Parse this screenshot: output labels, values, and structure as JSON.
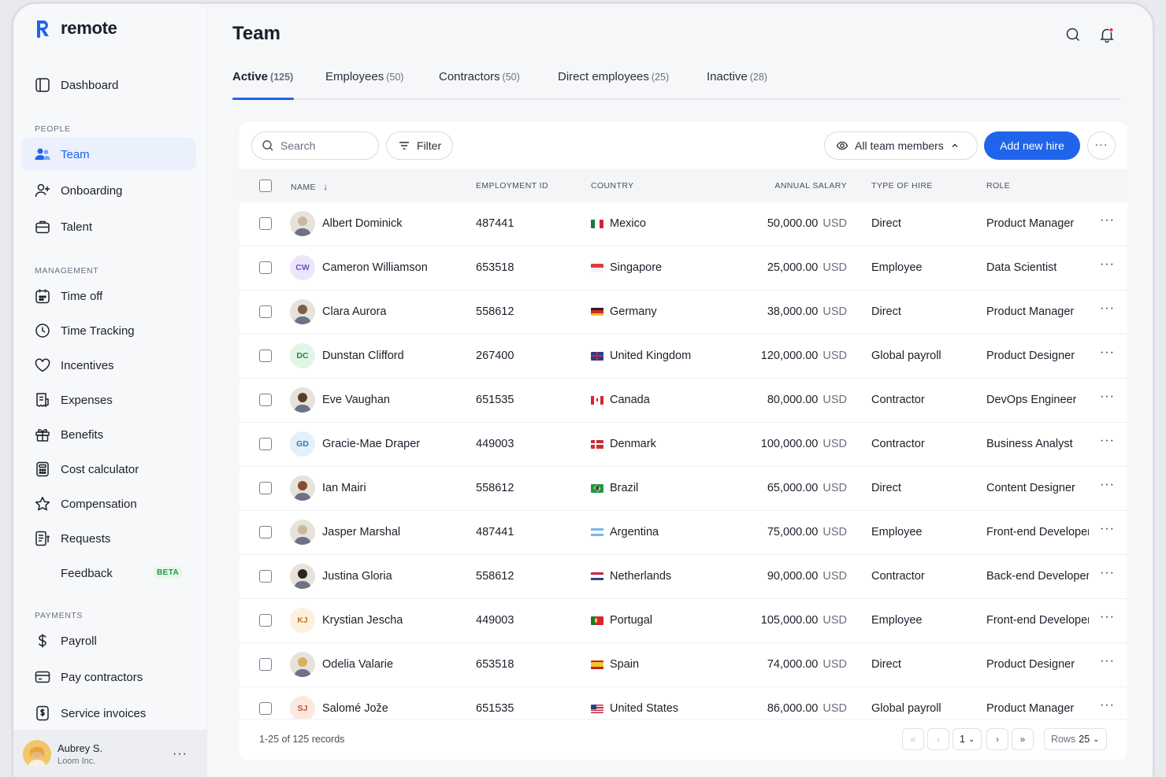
{
  "app": {
    "logo_text": "remote"
  },
  "sidebar": {
    "dashboard": "Dashboard",
    "sections": {
      "people": "PEOPLE",
      "management": "MANAGEMENT",
      "payments": "PAYMENTS"
    },
    "people_items": [
      "Team",
      "Onboarding",
      "Talent"
    ],
    "management_items": [
      "Time off",
      "Time Tracking",
      "Incentives",
      "Expenses",
      "Benefits",
      "Cost calculator",
      "Compensation",
      "Requests",
      "Feedback"
    ],
    "feedback_badge": "BETA",
    "payment_items": [
      "Payroll",
      "Pay contractors",
      "Service invoices"
    ],
    "user": {
      "name": "Aubrey S.",
      "org": "Loom Inc."
    }
  },
  "page": {
    "title": "Team"
  },
  "tabs": [
    {
      "label": "Active",
      "count": "(125)"
    },
    {
      "label": "Employees",
      "count": "(50)"
    },
    {
      "label": "Contractors",
      "count": "(50)"
    },
    {
      "label": "Direct employees",
      "count": "(25)"
    },
    {
      "label": "Inactive",
      "count": "(28)"
    }
  ],
  "toolbar": {
    "search_placeholder": "Search",
    "filter_label": "Filter",
    "members_select": "All team members",
    "add_label": "Add new hire",
    "more": "···"
  },
  "table": {
    "headers": {
      "name": "NAME",
      "employment_id": "EMPLOYMENT ID",
      "country": "COUNTRY",
      "annual_salary": "ANNUAL SALARY",
      "type_of_hire": "TYPE OF HIRE",
      "role": "ROLE"
    },
    "rows": [
      {
        "name": "Albert Dominick",
        "initials": "",
        "emp": "487441",
        "country": "Mexico",
        "salary": "50,000.00",
        "currency": "USD",
        "hire": "Direct",
        "role": "Product Manager"
      },
      {
        "name": "Cameron Williamson",
        "initials": "CW",
        "emp": "653518",
        "country": "Singapore",
        "salary": "25,000.00",
        "currency": "USD",
        "hire": "Employee",
        "role": "Data Scientist"
      },
      {
        "name": "Clara Aurora",
        "initials": "",
        "emp": "558612",
        "country": "Germany",
        "salary": "38,000.00",
        "currency": "USD",
        "hire": "Direct",
        "role": "Product Manager"
      },
      {
        "name": "Dunstan Clifford",
        "initials": "DC",
        "emp": "267400",
        "country": "United Kingdom",
        "salary": "120,000.00",
        "currency": "USD",
        "hire": "Global payroll",
        "role": "Product Designer"
      },
      {
        "name": "Eve Vaughan",
        "initials": "",
        "emp": "651535",
        "country": "Canada",
        "salary": "80,000.00",
        "currency": "USD",
        "hire": "Contractor",
        "role": "DevOps Engineer"
      },
      {
        "name": "Gracie-Mae Draper",
        "initials": "GD",
        "emp": "449003",
        "country": "Denmark",
        "salary": "100,000.00",
        "currency": "USD",
        "hire": "Contractor",
        "role": "Business Analyst"
      },
      {
        "name": "Ian Mairi",
        "initials": "",
        "emp": "558612",
        "country": "Brazil",
        "salary": "65,000.00",
        "currency": "USD",
        "hire": "Direct",
        "role": "Content Designer"
      },
      {
        "name": "Jasper Marshal",
        "initials": "",
        "emp": "487441",
        "country": "Argentina",
        "salary": "75,000.00",
        "currency": "USD",
        "hire": "Employee",
        "role": "Front-end Developer"
      },
      {
        "name": "Justina Gloria",
        "initials": "",
        "emp": "558612",
        "country": "Netherlands",
        "salary": "90,000.00",
        "currency": "USD",
        "hire": "Contractor",
        "role": "Back-end Developer"
      },
      {
        "name": "Krystian Jescha",
        "initials": "KJ",
        "emp": "449003",
        "country": "Portugal",
        "salary": "105,000.00",
        "currency": "USD",
        "hire": "Employee",
        "role": "Front-end Developer"
      },
      {
        "name": "Odelia Valarie",
        "initials": "",
        "emp": "653518",
        "country": "Spain",
        "salary": "74,000.00",
        "currency": "USD",
        "hire": "Direct",
        "role": "Product Designer"
      },
      {
        "name": "Salomé Jože",
        "initials": "SJ",
        "emp": "651535",
        "country": "United States",
        "salary": "86,000.00",
        "currency": "USD",
        "hire": "Global payroll",
        "role": "Product Manager"
      }
    ]
  },
  "footer": {
    "records": "1-25 of 125 records",
    "page": "1",
    "rows_label": "Rows",
    "rows_value": "25"
  },
  "colors": {
    "accent": "#2064ec",
    "beta": "#1c9a3d"
  }
}
